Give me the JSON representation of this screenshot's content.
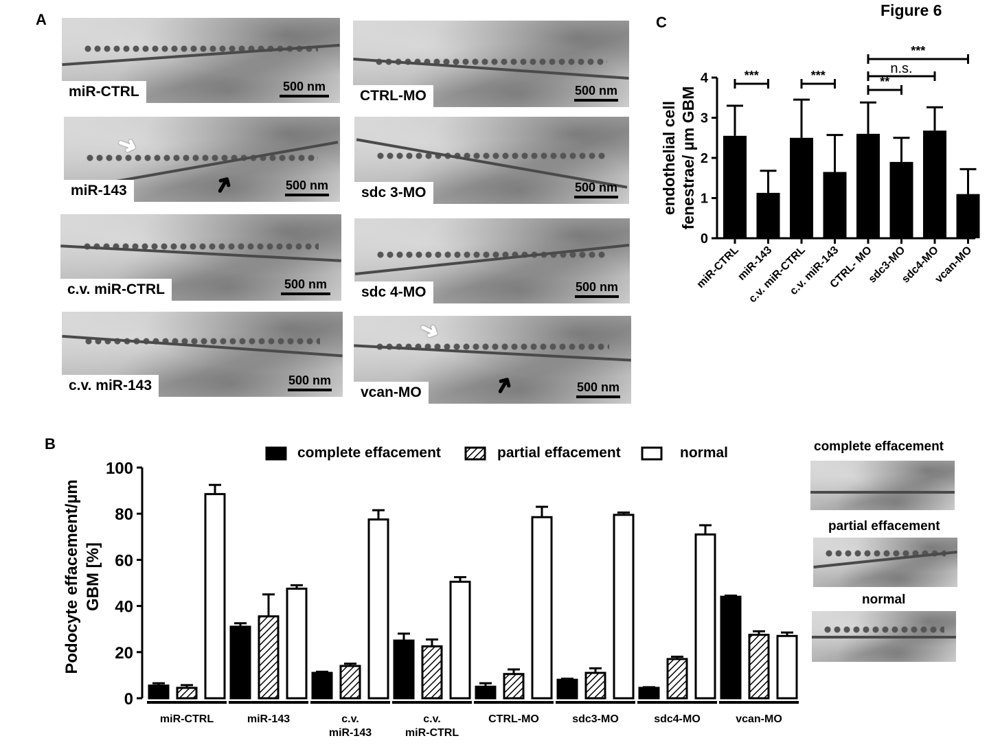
{
  "figure_title": "Figure 6",
  "panel_labels": {
    "a": "A",
    "b": "B",
    "c": "C"
  },
  "scale_text": "500 nm",
  "em_panels": [
    {
      "label": "miR-CTRL"
    },
    {
      "label": "CTRL-MO"
    },
    {
      "label": "miR-143"
    },
    {
      "label": "sdc 3-MO"
    },
    {
      "label": "c.v. miR-CTRL"
    },
    {
      "label": "sdc 4-MO"
    },
    {
      "label": "c.v. miR-143"
    },
    {
      "label": "vcan-MO"
    }
  ],
  "example_labels": [
    "complete effacement",
    "partial effacement",
    "normal"
  ],
  "chart_data": [
    {
      "type": "bar",
      "ylabel": "endothelial cell fenestrae/ µm GBM",
      "ylim": [
        0,
        4
      ],
      "yticks": [
        0,
        1,
        2,
        3,
        4
      ],
      "categories": [
        "miR-CTRL",
        "miR-143",
        "c.v. miR-CTRL",
        "c.v. miR-143",
        "CTRL- MO",
        "sdc3-MO",
        "sdc4-MO",
        "vcan-MO"
      ],
      "values": [
        2.55,
        1.13,
        2.5,
        1.65,
        2.6,
        1.9,
        2.68,
        1.1
      ],
      "errors": [
        0.75,
        0.55,
        0.95,
        0.92,
        0.78,
        0.6,
        0.58,
        0.62
      ],
      "significance": [
        {
          "from": 0,
          "to": 1,
          "label": "***"
        },
        {
          "from": 2,
          "to": 3,
          "label": "***"
        },
        {
          "from": 4,
          "to": 5,
          "label": "**"
        },
        {
          "from": 4,
          "to": 6,
          "label": "n.s."
        },
        {
          "from": 4,
          "to": 7,
          "label": "***"
        }
      ]
    },
    {
      "type": "bar",
      "ylabel": "Podocyte effacement/µm GBM [%]",
      "ylim": [
        0,
        100
      ],
      "yticks": [
        0,
        20,
        40,
        60,
        80,
        100
      ],
      "legend_position": "top",
      "categories": [
        "miR-CTRL",
        "miR-143",
        "c.v. miR-143",
        "c.v. miR-CTRL",
        "CTRL-MO",
        "sdc3-MO",
        "sdc4-MO",
        "vcan-MO"
      ],
      "series": [
        {
          "name": "complete effacement",
          "fill": "solid",
          "values": [
            5.5,
            31,
            11,
            25,
            5,
            8,
            4.5,
            44
          ],
          "errors": [
            1,
            1.5,
            0.5,
            3,
            1.5,
            0.5,
            0.3,
            0.5
          ]
        },
        {
          "name": "partial effacement",
          "fill": "hatched",
          "values": [
            4.5,
            35.5,
            14,
            22.5,
            10.5,
            11,
            17,
            27.5
          ],
          "errors": [
            1.2,
            9.5,
            1,
            3,
            2,
            2,
            1,
            1.5
          ]
        },
        {
          "name": "normal",
          "fill": "open",
          "values": [
            88.5,
            47.5,
            77.5,
            50.5,
            78.5,
            79.5,
            71,
            27
          ],
          "errors": [
            4,
            1.5,
            4,
            2,
            4.5,
            1,
            4,
            1.5
          ]
        }
      ]
    }
  ]
}
